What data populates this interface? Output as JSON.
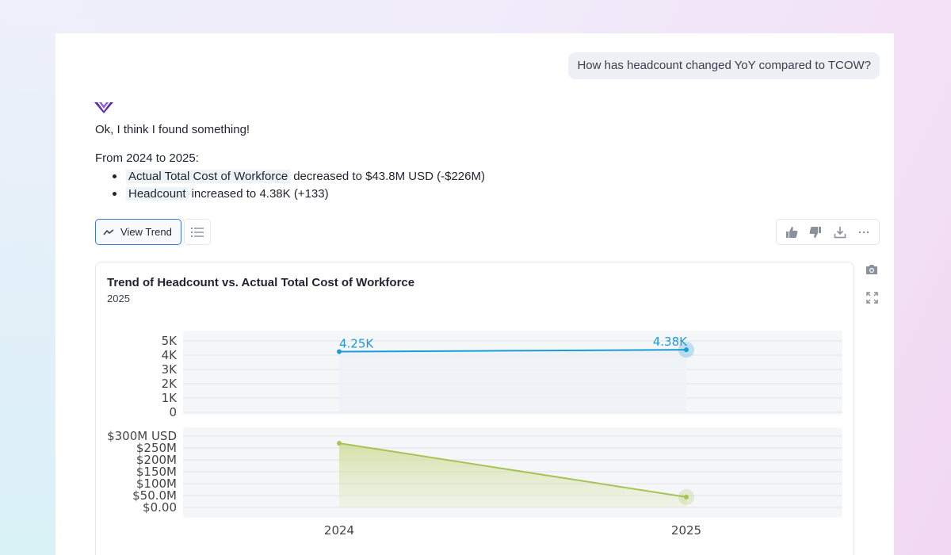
{
  "conversation": {
    "user_question": "How has headcount changed YoY compared to TCOW?",
    "assistant": {
      "intro": "Ok, I think I found something!",
      "period": "From 2024 to 2025:",
      "bullets": [
        {
          "metric": "Actual Total Cost of Workforce",
          "text": "decreased to $43.8M USD (-$226M)"
        },
        {
          "metric": "Headcount",
          "text": "increased to 4.38K (+133)"
        }
      ]
    }
  },
  "toolbar": {
    "view_trend_label": "View Trend",
    "view_trend_icon": "trend-line-icon",
    "list_icon": "list-icon",
    "actions": [
      "thumbs-up-icon",
      "thumbs-down-icon",
      "download-icon",
      "more-icon"
    ]
  },
  "chart_side_icons": [
    "camera-icon",
    "expand-icon"
  ],
  "colors": {
    "accent": "#3b78d6",
    "headcount": "#1b9bd8",
    "tcow": "#a6c356",
    "logo": "#5b2ea6"
  },
  "chart_data": {
    "type": "line",
    "title": "Trend of Headcount vs. Actual Total Cost of Workforce",
    "subtitle": "2025",
    "categories": [
      "2024",
      "2025"
    ],
    "panels": [
      {
        "name": "Headcount",
        "type": "line",
        "values": [
          4250,
          4380
        ],
        "data_labels": [
          "4.25K",
          "4.38K"
        ],
        "ylim": [
          0,
          5000
        ],
        "ticks": [
          0,
          1000,
          2000,
          3000,
          4000,
          5000
        ],
        "tick_labels": [
          "0",
          "1K",
          "2K",
          "3K",
          "4K",
          "5K"
        ]
      },
      {
        "name": "Actual Total Cost of Workforce",
        "type": "area",
        "values": [
          270000000,
          43800000
        ],
        "ylim": [
          0,
          300000000
        ],
        "ticks": [
          0,
          50000000,
          100000000,
          150000000,
          200000000,
          250000000,
          300000000
        ],
        "tick_labels": [
          "$0.00",
          "$50.0M",
          "$100M",
          "$150M",
          "$200M",
          "$250M",
          "$300M USD"
        ]
      }
    ]
  }
}
